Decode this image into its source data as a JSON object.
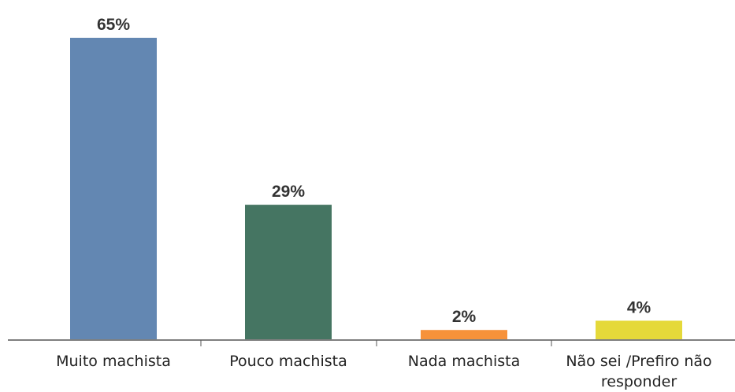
{
  "chart_data": {
    "type": "bar",
    "categories": [
      "Muito machista",
      "Pouco machista",
      "Nada machista",
      "Não sei /Prefiro não responder"
    ],
    "values": [
      65,
      29,
      2,
      4
    ],
    "value_labels": [
      "65%",
      "29%",
      "2%",
      "4%"
    ],
    "colors": [
      "#6387b2",
      "#457562",
      "#f7923a",
      "#e5d93a"
    ]
  }
}
